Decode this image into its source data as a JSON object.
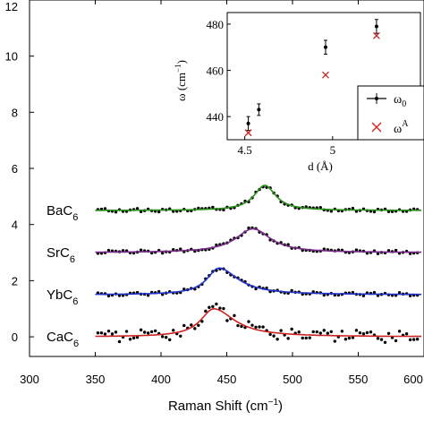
{
  "chart_data": [
    {
      "type": "scatter",
      "xlabel": "Raman Shift (cm⁻¹)",
      "ylabel": "",
      "xlim": [
        300,
        600
      ],
      "ylim": [
        -0.7,
        12
      ],
      "xticks": [
        300,
        350,
        400,
        450,
        500,
        550,
        600
      ],
      "xtick_labels": [
        "300",
        "350",
        "400",
        "450",
        "500",
        "550",
        "600"
      ],
      "yticks": [
        0,
        2,
        4,
        6,
        8,
        10,
        12
      ],
      "ytick_labels": [
        "0",
        "2",
        "4",
        "6",
        "8",
        "10",
        "12"
      ],
      "grid": false,
      "series": [
        {
          "name": "BaC6",
          "label_text": "BaC",
          "label_sub": "6",
          "color": "#2a8f1a",
          "offset": 4.5,
          "center": 479,
          "width": 10,
          "amp": 0.9,
          "asym": 0,
          "noise": [
            0.03,
            -0.05,
            0.06,
            -0.02,
            0.04,
            -0.06,
            0.02,
            0.05,
            -0.04,
            0.01,
            -0.03,
            0.06,
            -0.05,
            0.02,
            0.04,
            -0.02,
            0.05,
            -0.06,
            0.03,
            -0.01,
            0.04,
            -0.05,
            0.06,
            -0.03,
            0.02,
            0.05,
            -0.04,
            0.01,
            -0.06,
            0.03
          ]
        },
        {
          "name": "SrC6",
          "label_text": "SrC",
          "label_sub": "6",
          "color": "#7a2a8a",
          "offset": 3.0,
          "center": 470,
          "width": 16,
          "amp": 0.85,
          "asym": 0,
          "noise": [
            -0.04,
            0.05,
            -0.02,
            0.06,
            -0.05,
            0.03,
            0.01,
            -0.06,
            0.04,
            -0.03,
            0.05,
            -0.01,
            0.06,
            -0.04,
            0.02,
            -0.05,
            0.03,
            0.04,
            -0.06,
            0.02,
            -0.03,
            0.05,
            -0.02,
            0.06,
            -0.04,
            0.01,
            0.03,
            -0.05,
            0.04,
            -0.02
          ]
        },
        {
          "name": "YbC6",
          "label_text": "YbC",
          "label_sub": "6",
          "color": "#2233cc",
          "offset": 1.5,
          "center": 444,
          "width": 11,
          "amp": 0.95,
          "asym": 1,
          "noise": [
            0.05,
            -0.03,
            0.02,
            -0.06,
            0.04,
            0.01,
            -0.05,
            0.06,
            -0.02,
            0.03,
            -0.04,
            0.05,
            -0.01,
            0.02,
            -0.06,
            0.04,
            -0.03,
            0.06,
            -0.05,
            0.01,
            0.03,
            -0.02,
            0.05,
            -0.04,
            0.06,
            -0.01,
            0.02,
            -0.05,
            0.04,
            -0.03
          ]
        },
        {
          "name": "CaC6",
          "label_text": "CaC",
          "label_sub": "6",
          "color": "#cc2222",
          "offset": 0.0,
          "center": 440,
          "width": 12,
          "amp": 1.0,
          "asym": 1,
          "noise": [
            0.12,
            -0.15,
            0.08,
            0.18,
            -0.1,
            0.14,
            -0.2,
            0.05,
            0.16,
            -0.12,
            0.1,
            -0.06,
            0.2,
            -0.14,
            0.08,
            0.12,
            -0.18,
            0.04,
            -0.08,
            0.15,
            -0.22,
            0.1,
            0.06,
            -0.16,
            0.18,
            -0.05,
            0.09,
            -0.12,
            0.14,
            -0.1
          ]
        }
      ]
    },
    {
      "type": "scatter",
      "xlabel": "d (Å)",
      "ylabel": "ω (cm⁻¹)",
      "xlim": [
        4.4,
        5.5
      ],
      "ylim": [
        430,
        485
      ],
      "xticks": [
        4.5,
        5
      ],
      "xtick_labels": [
        "4.5",
        "5"
      ],
      "yticks": [
        440,
        460,
        480
      ],
      "ytick_labels": [
        "440",
        "460",
        "480"
      ],
      "legend_position": "bottom-right",
      "series": [
        {
          "name": "ω0",
          "label_main": "ω",
          "label_sub": "0",
          "marker": "dot-errorbar",
          "color": "#000000",
          "x": [
            4.52,
            4.58,
            4.96,
            5.25
          ],
          "y": [
            437,
            443,
            470,
            479
          ],
          "err": [
            3,
            2.5,
            3,
            3
          ]
        },
        {
          "name": "ωA",
          "label_main": "ω",
          "label_sup": "A",
          "marker": "x",
          "color": "#cc2222",
          "x": [
            4.52,
            4.96,
            5.25
          ],
          "y": [
            433,
            458,
            475
          ]
        }
      ]
    }
  ]
}
